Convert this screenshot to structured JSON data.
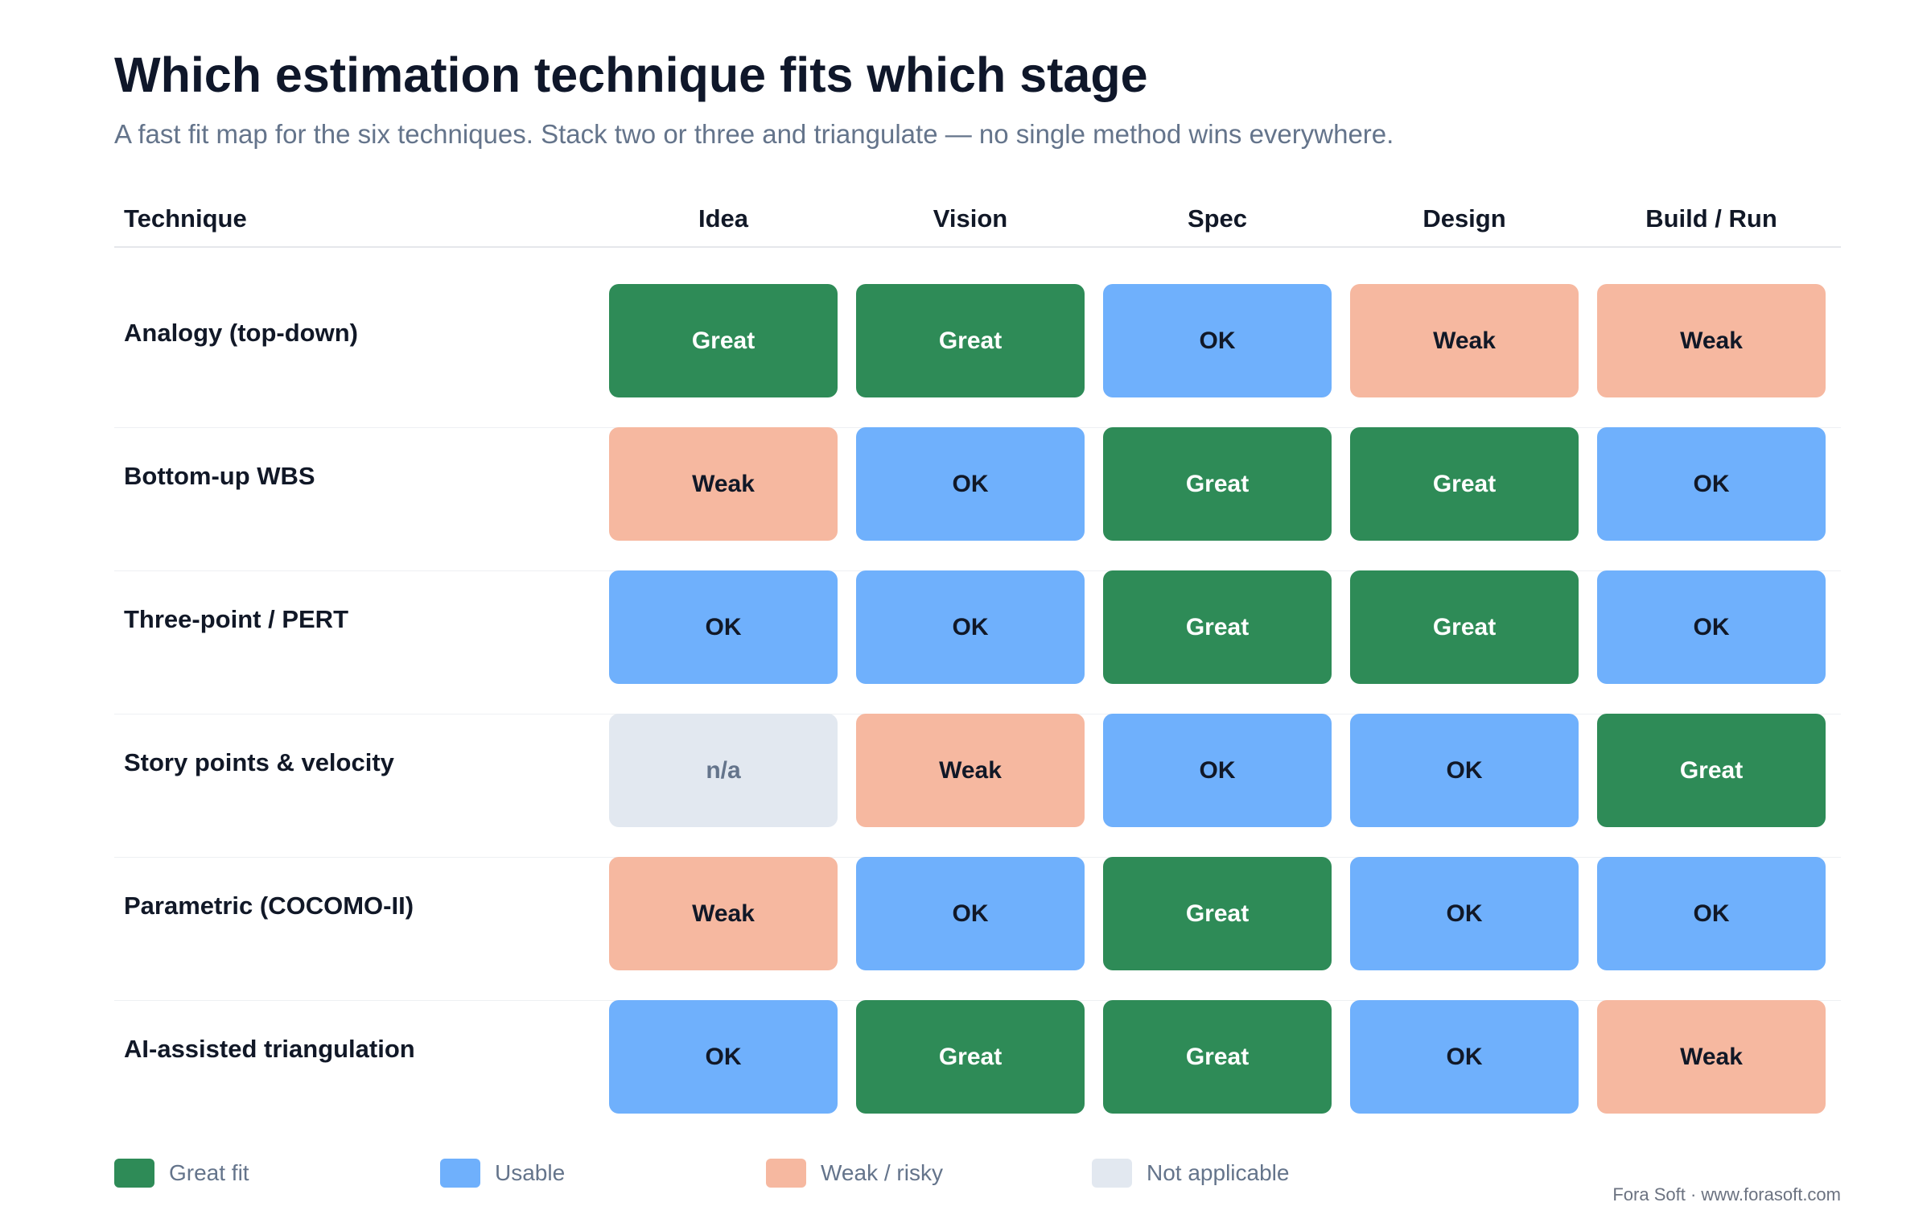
{
  "chart_data": {
    "type": "table",
    "title": "Which estimation technique fits which stage",
    "subtitle": "A fast fit map for the six techniques. Stack two or three and triangulate — no single method wins everywhere.",
    "row_header": "Technique",
    "columns": [
      "Idea",
      "Vision",
      "Spec",
      "Design",
      "Build / Run"
    ],
    "rows": [
      {
        "label": "Analogy (top-down)",
        "values": [
          "Great",
          "Great",
          "OK",
          "Weak",
          "Weak"
        ]
      },
      {
        "label": "Bottom-up WBS",
        "values": [
          "Weak",
          "OK",
          "Great",
          "Great",
          "OK"
        ]
      },
      {
        "label": "Three-point / PERT",
        "values": [
          "OK",
          "OK",
          "Great",
          "Great",
          "OK"
        ]
      },
      {
        "label": "Story points & velocity",
        "values": [
          "n/a",
          "Weak",
          "OK",
          "OK",
          "Great"
        ]
      },
      {
        "label": "Parametric (COCOMO-II)",
        "values": [
          "Weak",
          "OK",
          "Great",
          "OK",
          "OK"
        ]
      },
      {
        "label": "AI-assisted triangulation",
        "values": [
          "OK",
          "Great",
          "Great",
          "OK",
          "Weak"
        ]
      }
    ],
    "legend": [
      {
        "label": "Great fit",
        "value": "Great",
        "color": "#2e8b57"
      },
      {
        "label": "Usable",
        "value": "OK",
        "color": "#6fb0fc"
      },
      {
        "label": "Weak / risky",
        "value": "Weak",
        "color": "#f6b8a0"
      },
      {
        "label": "Not applicable",
        "value": "n/a",
        "color": "#e2e8f0"
      }
    ]
  },
  "footer": "Fora Soft · www.forasoft.com"
}
